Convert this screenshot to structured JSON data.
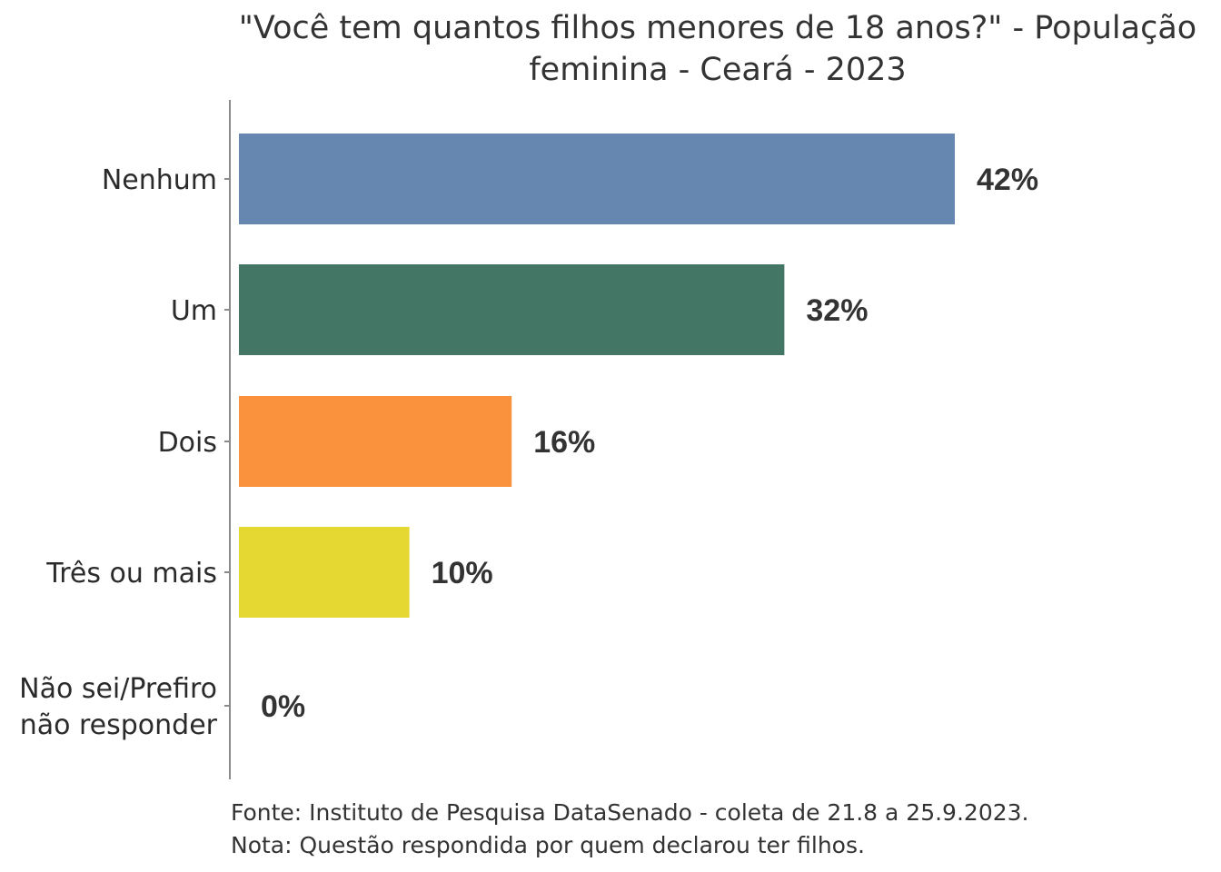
{
  "chart_data": {
    "type": "bar",
    "orientation": "horizontal",
    "title": "\"Você tem quantos filhos menores de 18 anos?\" - População feminina - Ceará - 2023",
    "title_lines": [
      "\"Você tem quantos filhos menores de 18 anos?\" - População",
      "feminina - Ceará - 2023"
    ],
    "categories": [
      [
        "Nenhum"
      ],
      [
        "Um"
      ],
      [
        "Dois"
      ],
      [
        "Três ou mais"
      ],
      [
        "Não sei/Prefiro",
        "não responder"
      ]
    ],
    "values": [
      42,
      32,
      16,
      10,
      0
    ],
    "value_labels": [
      "42%",
      "32%",
      "16%",
      "10%",
      "0%"
    ],
    "colors": [
      "#6688b0",
      "#447665",
      "#fa923d",
      "#e5d833",
      "#c9c9c9"
    ],
    "xlim": [
      0,
      42
    ],
    "grid": false,
    "legend": "none",
    "footnotes": [
      "Fonte: Instituto de Pesquisa DataSenado - coleta de 21.8 a 25.9.2023.",
      "Nota: Questão respondida por quem declarou ter filhos."
    ]
  }
}
